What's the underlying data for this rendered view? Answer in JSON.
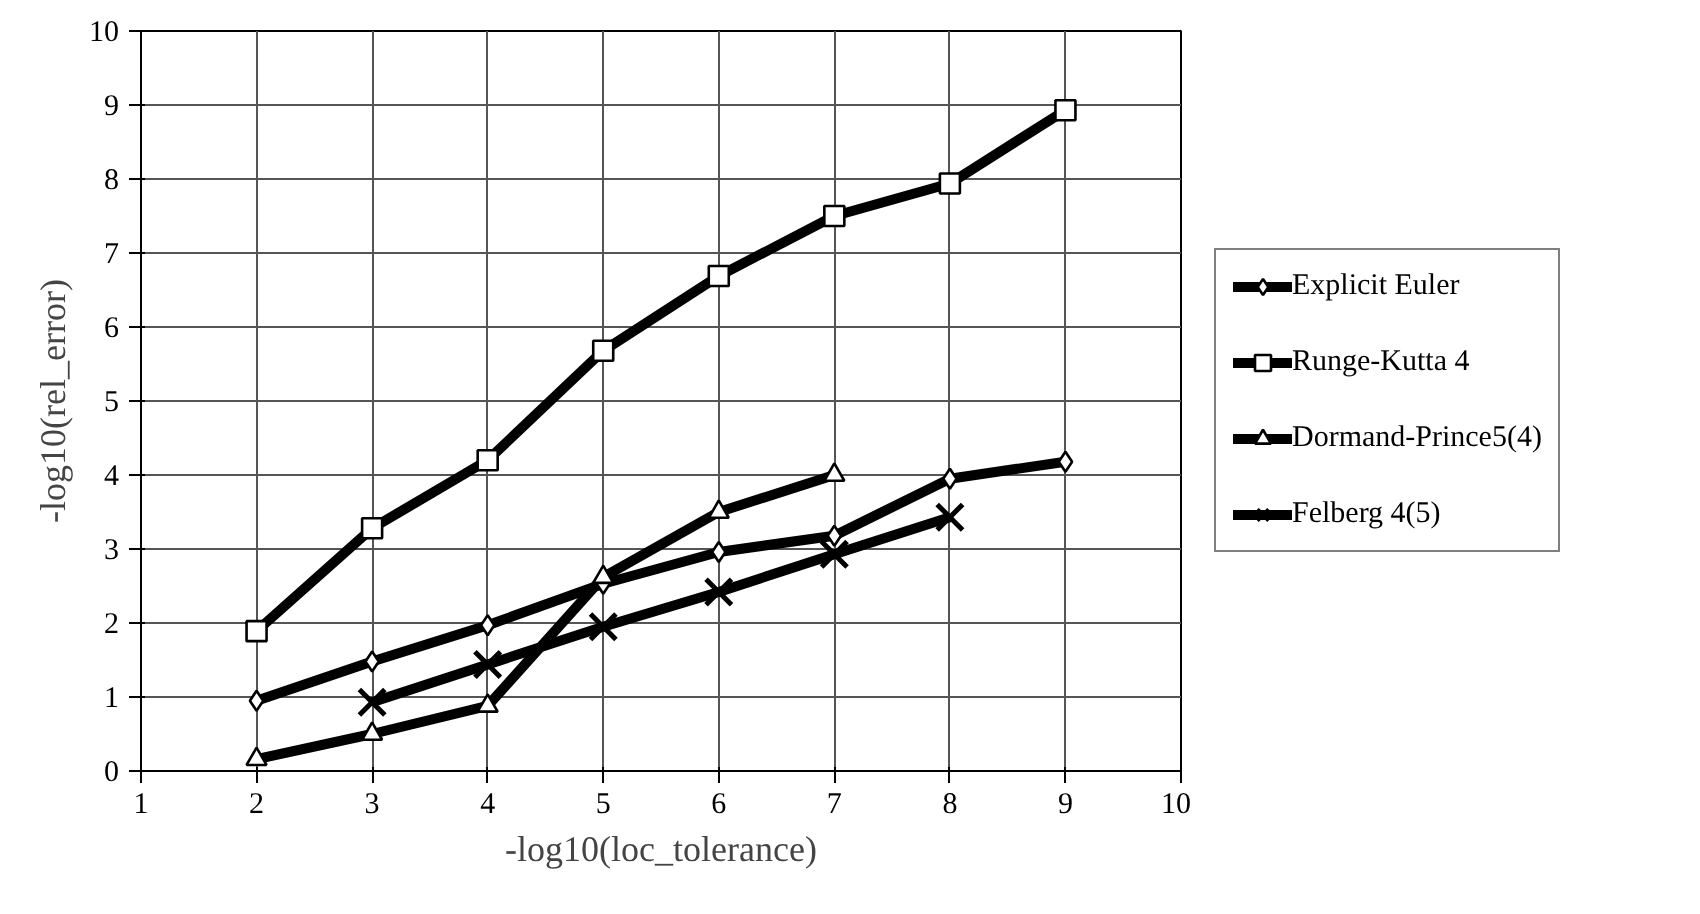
{
  "chart_data": {
    "type": "line",
    "xlabel": "-log10(loc_tolerance)",
    "ylabel": "-log10(rel_error)",
    "xlim": [
      1,
      10
    ],
    "xticks": [
      1,
      2,
      3,
      4,
      5,
      6,
      7,
      8,
      9,
      10
    ],
    "ylim": [
      0,
      10
    ],
    "yticks": [
      0,
      1,
      2,
      3,
      4,
      5,
      6,
      7,
      8,
      9,
      10
    ],
    "grid": true,
    "legend": "right",
    "line_style": "solid",
    "series": [
      {
        "name": "Explicit Euler",
        "color": "#000000",
        "marker": "diamond",
        "x": [
          2,
          3,
          4,
          5,
          6,
          7,
          8,
          9
        ],
        "values": [
          0.95,
          1.48,
          1.97,
          2.53,
          2.96,
          3.18,
          3.95,
          4.18
        ]
      },
      {
        "name": "Runge-Kutta 4",
        "color": "#000000",
        "marker": "square",
        "x": [
          2,
          3,
          4,
          5,
          6,
          7,
          8,
          9
        ],
        "values": [
          1.89,
          3.28,
          4.2,
          5.68,
          6.69,
          7.5,
          7.94,
          8.93
        ]
      },
      {
        "name": "Dormand-Prince5(4)",
        "color": "#000000",
        "marker": "triangle",
        "x": [
          2,
          3,
          4,
          5,
          6,
          7
        ],
        "values": [
          0.16,
          0.5,
          0.88,
          2.62,
          3.5,
          4.0
        ]
      },
      {
        "name": "Felberg 4(5)",
        "color": "#000000",
        "marker": "cross",
        "x": [
          3,
          4,
          5,
          6,
          7,
          8
        ],
        "values": [
          0.93,
          1.44,
          1.95,
          2.42,
          2.93,
          3.43
        ]
      }
    ]
  }
}
